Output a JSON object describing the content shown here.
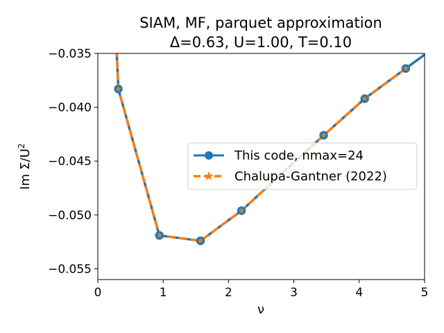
{
  "chart_data": {
    "type": "line",
    "title": "SIAM, MF, parquet approximation",
    "subtitle": "Δ=0.63, U=1.00, T=0.10",
    "xlabel": "ν",
    "ylabel_text": "Im Σ/U",
    "ylabel_superscript": "2",
    "xlim": [
      0,
      5
    ],
    "ylim": [
      -0.056,
      -0.035
    ],
    "xticks": [
      0,
      1,
      2,
      3,
      4,
      5
    ],
    "xtick_labels": [
      "0",
      "1",
      "2",
      "3",
      "4",
      "5"
    ],
    "yticks": [
      -0.055,
      -0.05,
      -0.045,
      -0.04,
      -0.035
    ],
    "ytick_labels": [
      "−0.055",
      "−0.050",
      "−0.045",
      "−0.040",
      "−0.035"
    ],
    "grid": false,
    "legend_position": "center-right",
    "series": [
      {
        "name": "This code, nmax=24",
        "color": "#1f77b4",
        "marker": "circle",
        "linestyle": "solid",
        "x": [
          0.2,
          0.314,
          0.942,
          1.571,
          2.199,
          2.827,
          3.456,
          4.084,
          4.712,
          5.34
        ],
        "y": [
          -0.0225,
          -0.0383,
          -0.0519,
          -0.0524,
          -0.0496,
          -0.0461,
          -0.0426,
          -0.0392,
          -0.0364,
          -0.0336
        ],
        "marker_indices": [
          1,
          2,
          3,
          4,
          6,
          7,
          8
        ]
      },
      {
        "name": "Chalupa-Gantner (2022)",
        "color": "#ff7f0e",
        "marker": "star",
        "linestyle": "dashed",
        "x": [
          0.2,
          0.314,
          0.942,
          1.571,
          2.199,
          2.827,
          3.456,
          4.084,
          4.712
        ],
        "y": [
          -0.0225,
          -0.0383,
          -0.0519,
          -0.0524,
          -0.0496,
          -0.0461,
          -0.0426,
          -0.0392,
          -0.0364
        ],
        "marker_indices": [
          1,
          2,
          3,
          4,
          6,
          7,
          8
        ]
      }
    ]
  }
}
